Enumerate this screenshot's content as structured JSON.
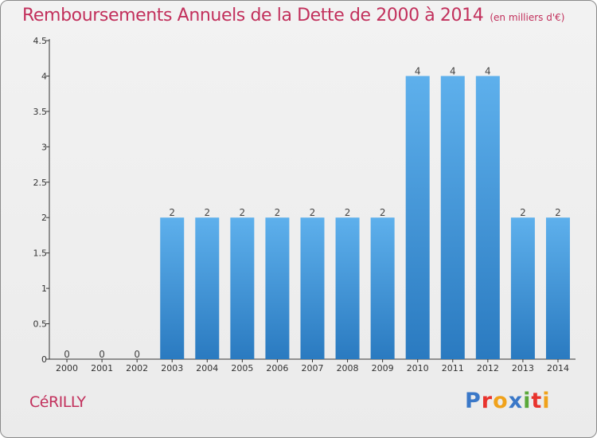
{
  "title": {
    "main": "Remboursements Annuels de la Dette de 2000 à 2014",
    "unit": "(en milliers d'€)"
  },
  "commune": "CéRILLY",
  "logo": {
    "letters": [
      "P",
      "r",
      "o",
      "x",
      "i",
      "t",
      "i"
    ],
    "colors": [
      "#3a78c8",
      "#e8332d",
      "#f0a21b",
      "#3a78c8",
      "#5aa83a",
      "#e8332d",
      "#f0a21b"
    ]
  },
  "colors": {
    "bar_top": "#5eb0ec",
    "bar_bottom": "#2a7ac0",
    "title": "#c2305c",
    "axis": "#333333"
  },
  "chart_data": {
    "type": "bar",
    "categories": [
      "2000",
      "2001",
      "2002",
      "2003",
      "2004",
      "2005",
      "2006",
      "2007",
      "2008",
      "2009",
      "2010",
      "2011",
      "2012",
      "2013",
      "2014"
    ],
    "values": [
      0,
      0,
      0,
      2,
      2,
      2,
      2,
      2,
      2,
      2,
      4,
      4,
      4,
      2,
      2
    ],
    "data_labels": [
      "0",
      "0",
      "0",
      "2",
      "2",
      "2",
      "2",
      "2",
      "2",
      "2",
      "4",
      "4",
      "4",
      "2",
      "2"
    ],
    "y_ticks": [
      {
        "value": 0,
        "label": "0"
      },
      {
        "value": 0.5,
        "label": "0.5"
      },
      {
        "value": 1,
        "label": "1"
      },
      {
        "value": 1.5,
        "label": "1.5"
      },
      {
        "value": 2,
        "label": "2"
      },
      {
        "value": 2.5,
        "label": "2.5"
      },
      {
        "value": 3,
        "label": "3"
      },
      {
        "value": 3.5,
        "label": "3.5"
      },
      {
        "value": 4,
        "label": "4"
      },
      {
        "value": 4.5,
        "label": "4.5"
      }
    ],
    "ylim": [
      0,
      4.5
    ],
    "xlabel": "",
    "ylabel": "",
    "grid": false,
    "legend": "none"
  }
}
